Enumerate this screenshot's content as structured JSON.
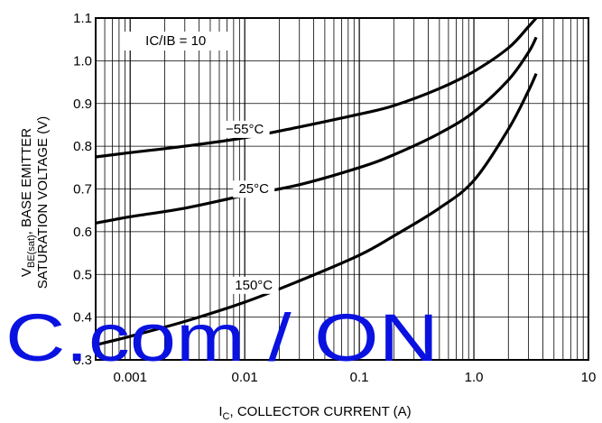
{
  "chart_data": {
    "type": "line",
    "xscale": "log",
    "xlim": [
      0.0005,
      10
    ],
    "ylim": [
      0.3,
      1.1
    ],
    "grid": true,
    "x_ticks": [
      "0.001",
      "0.01",
      "0.1",
      "1.0",
      "10"
    ],
    "x_tick_values": [
      0.001,
      0.01,
      0.1,
      1.0,
      10
    ],
    "y_ticks": [
      "0.3",
      "0.4",
      "0.5",
      "0.6",
      "0.7",
      "0.8",
      "0.9",
      "1.0",
      "1.1"
    ],
    "y_tick_values": [
      0.3,
      0.4,
      0.5,
      0.6,
      0.7,
      0.8,
      0.9,
      1.0,
      1.1
    ],
    "xlabel": {
      "main": "I",
      "sub": "C",
      "rest": ", COLLECTOR CURRENT (A)"
    },
    "ylabel": {
      "main": "V",
      "sub": "BE(sat)",
      "rest": ", BASE EMITTER",
      "line2": "SATURATION VOLTAGE (V)"
    },
    "annotation": "IC/IB = 10",
    "series": [
      {
        "name": "−55°C",
        "x": [
          0.0005,
          0.001,
          0.003,
          0.01,
          0.03,
          0.1,
          0.2,
          0.5,
          1.0,
          2.0,
          3.0,
          3.5
        ],
        "y": [
          0.775,
          0.785,
          0.8,
          0.82,
          0.845,
          0.875,
          0.895,
          0.935,
          0.975,
          1.03,
          1.08,
          1.1
        ],
        "label_at": [
          0.01,
          0.83
        ]
      },
      {
        "name": "25°C",
        "x": [
          0.0005,
          0.001,
          0.003,
          0.01,
          0.03,
          0.1,
          0.2,
          0.5,
          1.0,
          2.0,
          3.0,
          3.5
        ],
        "y": [
          0.62,
          0.635,
          0.655,
          0.685,
          0.71,
          0.75,
          0.78,
          0.83,
          0.88,
          0.955,
          1.02,
          1.055
        ],
        "label_at": [
          0.012,
          0.69
        ]
      },
      {
        "name": "150°C",
        "x": [
          0.0005,
          0.001,
          0.003,
          0.01,
          0.03,
          0.1,
          0.2,
          0.5,
          1.0,
          2.0,
          3.0,
          3.5
        ],
        "y": [
          0.335,
          0.355,
          0.39,
          0.435,
          0.485,
          0.545,
          0.59,
          0.655,
          0.72,
          0.84,
          0.93,
          0.97
        ],
        "label_at": [
          0.012,
          0.465
        ]
      }
    ]
  },
  "watermark": "C.com / ON"
}
